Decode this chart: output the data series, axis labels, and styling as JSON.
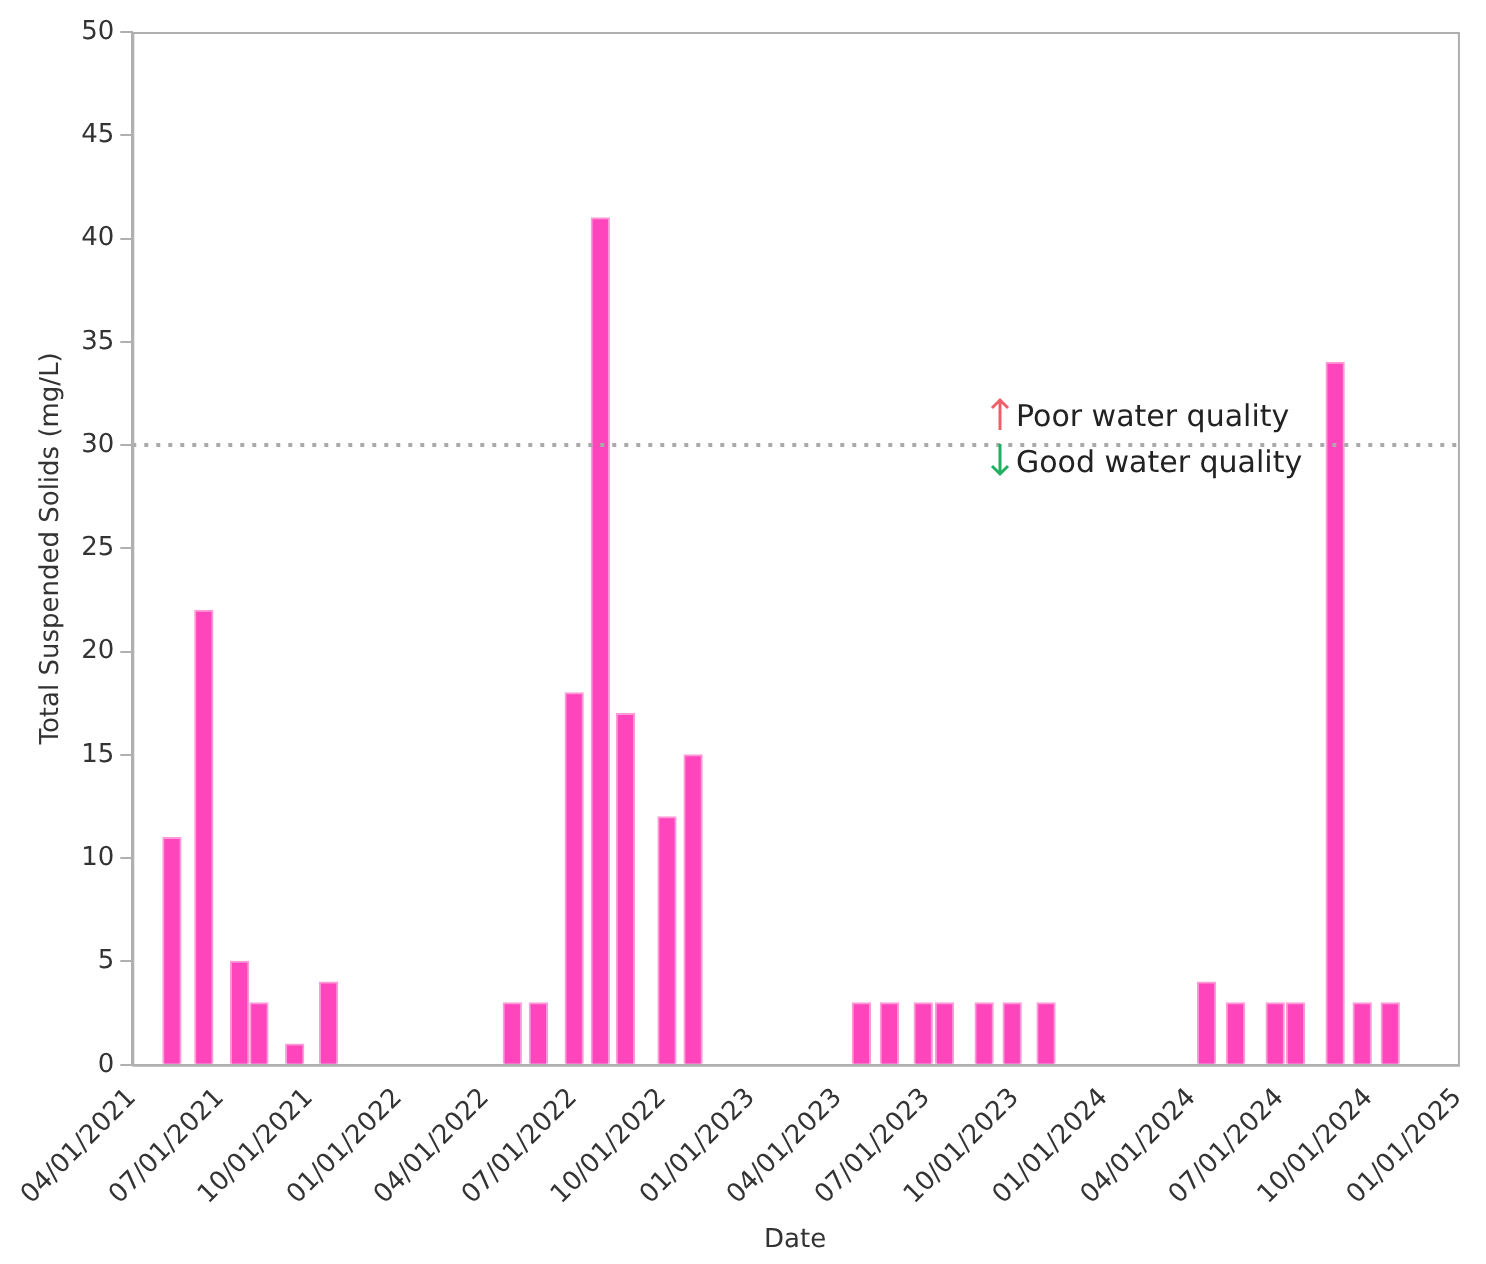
{
  "chart_data": {
    "type": "bar",
    "xlabel": "Date",
    "ylabel": "Total Suspended Solids (mg/L)",
    "x": [
      "2021-05-12",
      "2021-06-14",
      "2021-07-21",
      "2021-08-10",
      "2021-09-16",
      "2021-10-21",
      "2022-04-29",
      "2022-05-26",
      "2022-07-02",
      "2022-07-29",
      "2022-08-24",
      "2022-10-06",
      "2022-11-02",
      "2023-04-25",
      "2023-05-24",
      "2023-06-28",
      "2023-07-20",
      "2023-08-30",
      "2023-09-28",
      "2023-11-02",
      "2024-04-16",
      "2024-05-16",
      "2024-06-26",
      "2024-07-17",
      "2024-08-27",
      "2024-09-24",
      "2024-10-23"
    ],
    "values": [
      11,
      22,
      5,
      3,
      1,
      4,
      3,
      3,
      18,
      41,
      17,
      12,
      15,
      3,
      3,
      3,
      3,
      3,
      3,
      3,
      4,
      3,
      3,
      3,
      34,
      3,
      3
    ],
    "color": "#ff45bc",
    "ylim": [
      0,
      50
    ],
    "yticks": [
      0,
      5,
      10,
      15,
      20,
      25,
      30,
      35,
      40,
      45,
      50
    ],
    "xlim": [
      "2021-04-01",
      "2025-01-01"
    ],
    "xticks": [
      {
        "value": "2021-04-01",
        "label": "04/01/2021"
      },
      {
        "value": "2021-07-01",
        "label": "07/01/2021"
      },
      {
        "value": "2021-10-01",
        "label": "10/01/2021"
      },
      {
        "value": "2022-01-01",
        "label": "01/01/2022"
      },
      {
        "value": "2022-04-01",
        "label": "04/01/2022"
      },
      {
        "value": "2022-07-01",
        "label": "07/01/2022"
      },
      {
        "value": "2022-10-01",
        "label": "10/01/2022"
      },
      {
        "value": "2023-01-01",
        "label": "01/01/2023"
      },
      {
        "value": "2023-04-01",
        "label": "04/01/2023"
      },
      {
        "value": "2023-07-01",
        "label": "07/01/2023"
      },
      {
        "value": "2023-10-01",
        "label": "10/01/2023"
      },
      {
        "value": "2024-01-01",
        "label": "01/01/2024"
      },
      {
        "value": "2024-04-01",
        "label": "04/01/2024"
      },
      {
        "value": "2024-07-01",
        "label": "07/01/2024"
      },
      {
        "value": "2024-10-01",
        "label": "10/01/2024"
      },
      {
        "value": "2025-01-01",
        "label": "01/01/2025"
      }
    ],
    "ref_lines": [
      {
        "axis": "y",
        "value": 30,
        "color": "#aaaaaa",
        "line_style": "dotted"
      }
    ],
    "annotations": [
      "Poor water quality",
      "Good water quality"
    ],
    "grid": false,
    "legend": false
  }
}
